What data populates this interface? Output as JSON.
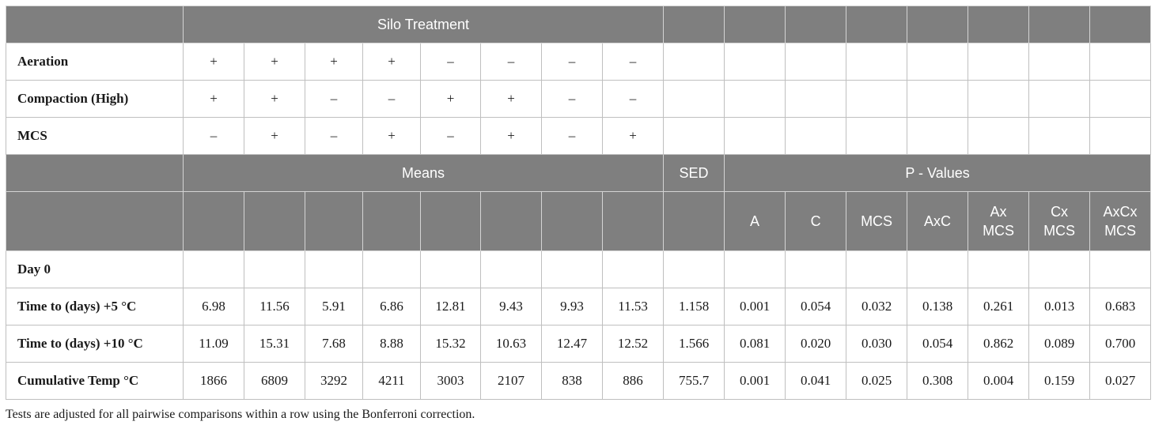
{
  "silo_header": "Silo Treatment",
  "factors": [
    {
      "label": "Aeration",
      "values": [
        "+",
        "+",
        "+",
        "+",
        "–",
        "–",
        "–",
        "–"
      ]
    },
    {
      "label": "Compaction (High)",
      "values": [
        "+",
        "+",
        "–",
        "–",
        "+",
        "+",
        "–",
        "–"
      ]
    },
    {
      "label": "MCS",
      "values": [
        "–",
        "+",
        "–",
        "+",
        "–",
        "+",
        "–",
        "+"
      ]
    }
  ],
  "means_header": "Means",
  "sed_header": "SED",
  "pvalues_header": "P - Values",
  "pvalue_columns": [
    {
      "line1": "A",
      "line2": ""
    },
    {
      "line1": "C",
      "line2": ""
    },
    {
      "line1": "MCS",
      "line2": ""
    },
    {
      "line1": "AxC",
      "line2": ""
    },
    {
      "line1": "Ax",
      "line2": "MCS"
    },
    {
      "line1": "Cx",
      "line2": "MCS"
    },
    {
      "line1": "AxCx",
      "line2": "MCS"
    }
  ],
  "day0_label": "Day 0",
  "rows": [
    {
      "label": "Time to (days) +5 °C",
      "means": [
        "6.98",
        "11.56",
        "5.91",
        "6.86",
        "12.81",
        "9.43",
        "9.93",
        "11.53"
      ],
      "sed": "1.158",
      "p": [
        "0.001",
        "0.054",
        "0.032",
        "0.138",
        "0.261",
        "0.013",
        "0.683"
      ]
    },
    {
      "label": "Time to (days) +10 °C",
      "means": [
        "11.09",
        "15.31",
        "7.68",
        "8.88",
        "15.32",
        "10.63",
        "12.47",
        "12.52"
      ],
      "sed": "1.566",
      "p": [
        "0.081",
        "0.020",
        "0.030",
        "0.054",
        "0.862",
        "0.089",
        "0.700"
      ]
    },
    {
      "label": "Cumulative Temp °C",
      "means": [
        "1866",
        "6809",
        "3292",
        "4211",
        "3003",
        "2107",
        "838",
        "886"
      ],
      "sed": "755.7",
      "p": [
        "0.001",
        "0.041",
        "0.025",
        "0.308",
        "0.004",
        "0.159",
        "0.027"
      ]
    }
  ],
  "footnote": "Tests are adjusted for all pairwise comparisons within a row using the Bonferroni correction."
}
